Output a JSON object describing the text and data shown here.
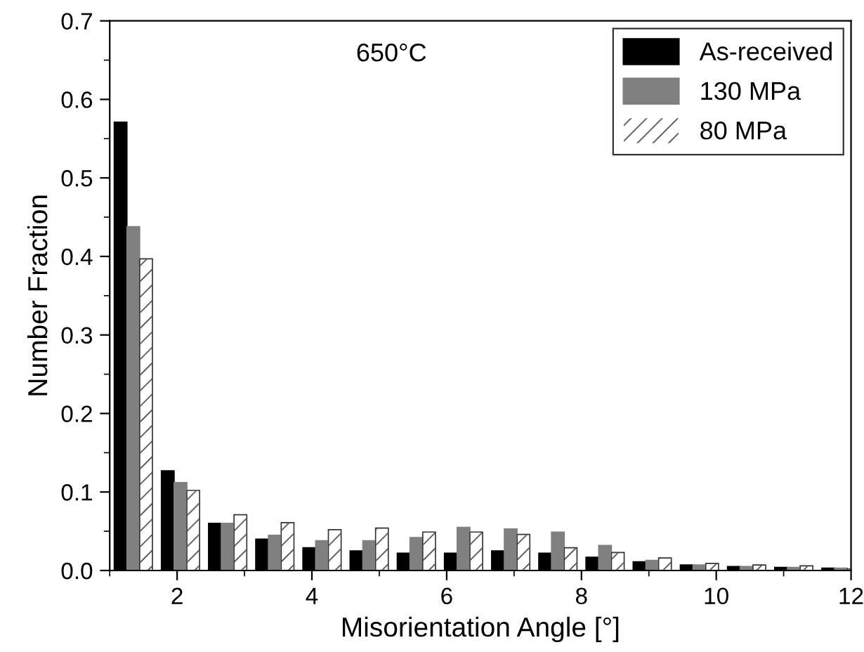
{
  "chart_data": {
    "type": "bar",
    "xlabel": "Misorientation Angle [°]",
    "ylabel": "Number Fraction",
    "annotations": [
      "650°C"
    ],
    "x": [
      1.35,
      2.05,
      2.75,
      3.45,
      4.15,
      4.85,
      5.55,
      6.25,
      6.95,
      7.65,
      8.35,
      9.05,
      9.75,
      10.45,
      11.15,
      11.85
    ],
    "series": [
      {
        "name": "As-received",
        "color": "#000000",
        "values": [
          0.571,
          0.127,
          0.06,
          0.04,
          0.029,
          0.025,
          0.022,
          0.022,
          0.025,
          0.022,
          0.017,
          0.011,
          0.007,
          0.005,
          0.004,
          0.003
        ]
      },
      {
        "name": "130 MPa",
        "color": "#808080",
        "values": [
          0.438,
          0.112,
          0.06,
          0.045,
          0.038,
          0.038,
          0.042,
          0.055,
          0.053,
          0.049,
          0.032,
          0.013,
          0.007,
          0.005,
          0.004,
          0.003
        ]
      },
      {
        "name": "80 MPa",
        "color": "#ffffff",
        "values": [
          0.397,
          0.102,
          0.071,
          0.061,
          0.052,
          0.054,
          0.049,
          0.049,
          0.046,
          0.029,
          0.023,
          0.016,
          0.009,
          0.007,
          0.006,
          0.002
        ]
      }
    ],
    "xlim": [
      1,
      12
    ],
    "xticks": [
      2,
      4,
      6,
      8,
      10,
      12
    ],
    "ylim": [
      0,
      0.7
    ],
    "yticks": [
      {
        "value": 0,
        "label": "0.0"
      },
      0.1,
      0.2,
      0.3,
      0.4,
      0.5,
      0.6,
      0.7
    ],
    "grid": false,
    "legend": "top right"
  }
}
